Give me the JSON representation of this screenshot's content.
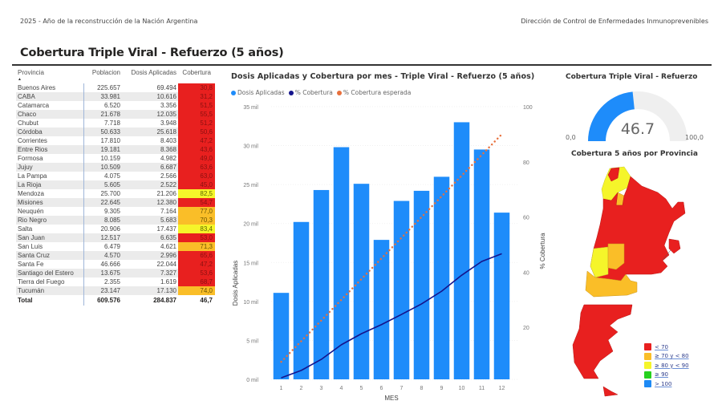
{
  "header": {
    "left_text": "2025 - Año de la reconstrucción de la Nación Argentina",
    "right_text": "Dirección de Control de Enfermedades Inmunoprevenibles",
    "page_title": "Cobertura Triple Viral - Refuerzo (5 años)"
  },
  "colors": {
    "red": "#E8201F",
    "orange": "#FABE28",
    "yellow": "#F5F52A",
    "green": "#26D11E",
    "blue": "#1E8AF5",
    "bar_blue": "#1E8CFA",
    "line_navy": "#14148C",
    "line_orange": "#E8703C"
  },
  "table": {
    "columns": [
      "Provincia",
      "Poblacion",
      "Dosis Aplicadas",
      "Cobertura"
    ],
    "sort_indicator": "▲",
    "rows": [
      {
        "provincia": "Buenos Aires",
        "poblacion": "225.657",
        "dosis": "69.494",
        "cobertura": "30,8",
        "band": "red"
      },
      {
        "provincia": "CABA",
        "poblacion": "33.981",
        "dosis": "10.616",
        "cobertura": "31,2",
        "band": "red"
      },
      {
        "provincia": "Catamarca",
        "poblacion": "6.520",
        "dosis": "3.356",
        "cobertura": "51,5",
        "band": "red"
      },
      {
        "provincia": "Chaco",
        "poblacion": "21.678",
        "dosis": "12.035",
        "cobertura": "55,5",
        "band": "red"
      },
      {
        "provincia": "Chubut",
        "poblacion": "7.718",
        "dosis": "3.948",
        "cobertura": "51,2",
        "band": "red"
      },
      {
        "provincia": "Córdoba",
        "poblacion": "50.633",
        "dosis": "25.618",
        "cobertura": "50,6",
        "band": "red"
      },
      {
        "provincia": "Corrientes",
        "poblacion": "17.810",
        "dosis": "8.403",
        "cobertura": "47,2",
        "band": "red"
      },
      {
        "provincia": "Entre Rios",
        "poblacion": "19.181",
        "dosis": "8.368",
        "cobertura": "43,6",
        "band": "red"
      },
      {
        "provincia": "Formosa",
        "poblacion": "10.159",
        "dosis": "4.982",
        "cobertura": "49,0",
        "band": "red"
      },
      {
        "provincia": "Jujuy",
        "poblacion": "10.509",
        "dosis": "6.687",
        "cobertura": "63,6",
        "band": "red"
      },
      {
        "provincia": "La Pampa",
        "poblacion": "4.075",
        "dosis": "2.566",
        "cobertura": "63,0",
        "band": "red"
      },
      {
        "provincia": "La Rioja",
        "poblacion": "5.605",
        "dosis": "2.522",
        "cobertura": "45,0",
        "band": "red"
      },
      {
        "provincia": "Mendoza",
        "poblacion": "25.700",
        "dosis": "21.206",
        "cobertura": "82,5",
        "band": "yellow"
      },
      {
        "provincia": "Misiones",
        "poblacion": "22.645",
        "dosis": "12.380",
        "cobertura": "54,7",
        "band": "red"
      },
      {
        "provincia": "Neuquén",
        "poblacion": "9.305",
        "dosis": "7.164",
        "cobertura": "77,0",
        "band": "orange"
      },
      {
        "provincia": "Rio Negro",
        "poblacion": "8.085",
        "dosis": "5.683",
        "cobertura": "70,3",
        "band": "orange"
      },
      {
        "provincia": "Salta",
        "poblacion": "20.906",
        "dosis": "17.437",
        "cobertura": "83,4",
        "band": "yellow"
      },
      {
        "provincia": "San Juan",
        "poblacion": "12.517",
        "dosis": "6.635",
        "cobertura": "53,0",
        "band": "red"
      },
      {
        "provincia": "San Luis",
        "poblacion": "6.479",
        "dosis": "4.621",
        "cobertura": "71,3",
        "band": "orange"
      },
      {
        "provincia": "Santa Cruz",
        "poblacion": "4.570",
        "dosis": "2.996",
        "cobertura": "65,6",
        "band": "red"
      },
      {
        "provincia": "Santa Fe",
        "poblacion": "46.666",
        "dosis": "22.044",
        "cobertura": "47,2",
        "band": "red"
      },
      {
        "provincia": "Santiago del Estero",
        "poblacion": "13.675",
        "dosis": "7.327",
        "cobertura": "53,6",
        "band": "red"
      },
      {
        "provincia": "Tierra del Fuego",
        "poblacion": "2.355",
        "dosis": "1.619",
        "cobertura": "68,7",
        "band": "red"
      },
      {
        "provincia": "Tucumán",
        "poblacion": "23.147",
        "dosis": "17.130",
        "cobertura": "74,0",
        "band": "orange"
      }
    ],
    "total": {
      "label": "Total",
      "poblacion": "609.576",
      "dosis": "284.837",
      "cobertura": "46,7"
    }
  },
  "chart": {
    "title": "Dosis Aplicadas y Cobertura por mes - Triple Viral - Refuerzo (5 años)",
    "legend": [
      "Dosis Aplicadas",
      "% Cobertura",
      "% Cobertura esperada"
    ],
    "xlabel": "MES",
    "ylabel_left": "Dosis Aplicadas",
    "ylabel_right": "% Cobertura",
    "left_ticks": [
      "0 mil",
      "5 mil",
      "10 mil",
      "15 mil",
      "20 mil",
      "25 mil",
      "30 mil",
      "35 mil"
    ],
    "right_ticks": [
      "20",
      "40",
      "60",
      "80",
      "100"
    ]
  },
  "chart_data": {
    "type": "bar",
    "title": "Dosis Aplicadas y Cobertura por mes - Triple Viral - Refuerzo (5 años)",
    "xlabel": "MES",
    "ylabel": "Dosis Aplicadas",
    "y2label": "% Cobertura",
    "categories": [
      "1",
      "2",
      "3",
      "4",
      "5",
      "6",
      "7",
      "8",
      "9",
      "10",
      "11",
      "12"
    ],
    "series": [
      {
        "name": "Dosis Aplicadas",
        "type": "bar",
        "axis": "left",
        "values": [
          11100,
          20200,
          24300,
          29800,
          25100,
          17900,
          22900,
          24200,
          26000,
          33000,
          29500,
          21400
        ]
      },
      {
        "name": "% Cobertura",
        "type": "line",
        "axis": "right",
        "values": [
          1.7,
          4.4,
          8.4,
          13.7,
          17.7,
          21.0,
          24.7,
          28.5,
          33.1,
          38.9,
          43.9,
          46.7
        ]
      },
      {
        "name": "% Cobertura esperada",
        "type": "line-dotted",
        "axis": "right",
        "values": [
          7.5,
          15.0,
          22.5,
          30.0,
          37.5,
          45.0,
          52.5,
          60.0,
          67.5,
          75.0,
          82.5,
          90.0
        ]
      }
    ],
    "ylim": [
      0,
      35000
    ],
    "y2lim": [
      0,
      100
    ],
    "grid": true,
    "legend_position": "top-left"
  },
  "gauge": {
    "title": "Cobertura Triple Viral - Refuerzo",
    "value": "46.7",
    "min": "0,0",
    "max": "100,0",
    "fraction": 0.467
  },
  "map": {
    "title": "Cobertura 5 años por Provincia",
    "legend": [
      {
        "label": "< 70",
        "color": "#E8201F"
      },
      {
        "label": "≥ 70 y < 80",
        "color": "#FABE28"
      },
      {
        "label": "≥ 80 y < 90",
        "color": "#F5F52A"
      },
      {
        "label": "≥ 90",
        "color": "#26D11E"
      },
      {
        "label": "> 100",
        "color": "#1E8AF5"
      }
    ]
  }
}
